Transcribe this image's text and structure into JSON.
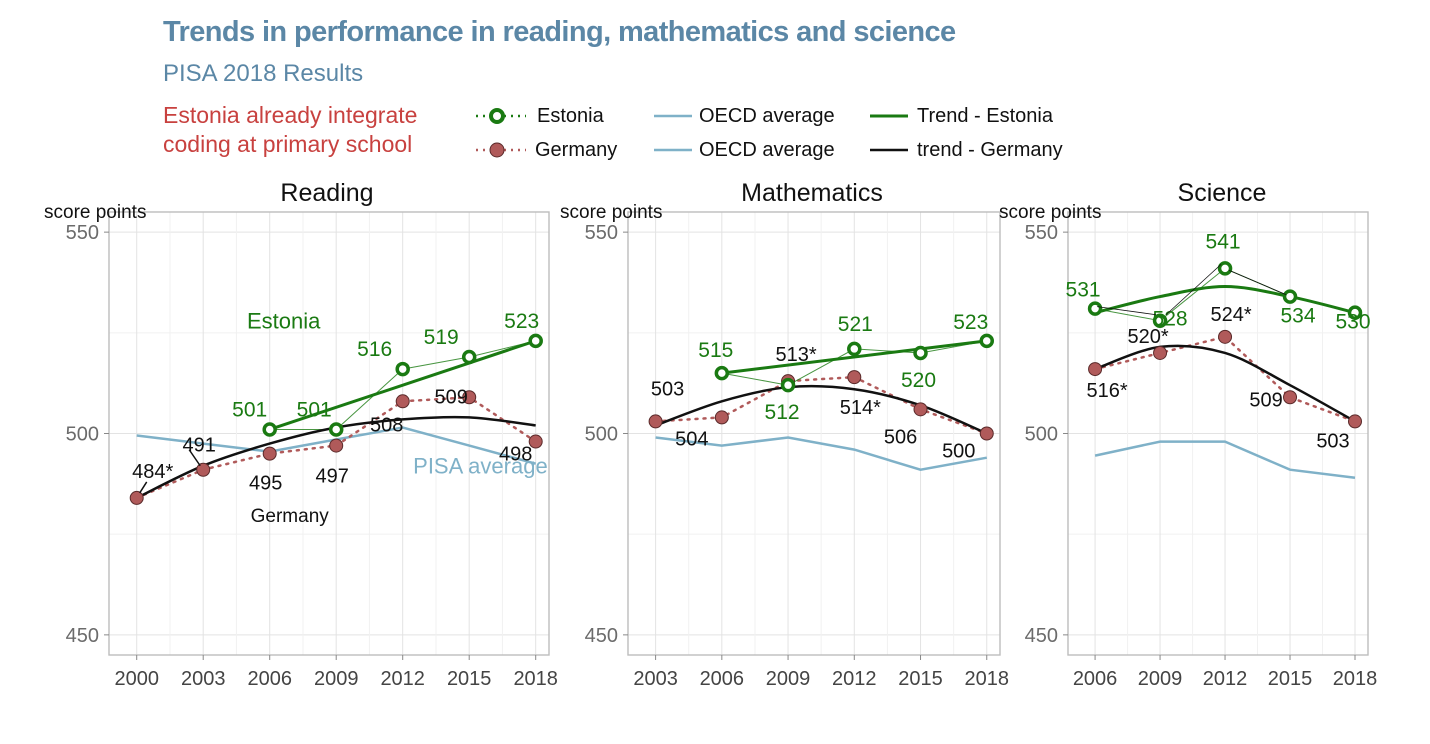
{
  "title": "Trends in performance in reading, mathematics and science",
  "subtitle": "PISA 2018 Results",
  "note": [
    "Estonia already integrate",
    "coding at primary school"
  ],
  "legend": {
    "estonia": "Estonia",
    "germany": "Germany",
    "oecd_1": "OECD average",
    "oecd_2": "OECD average",
    "trend_estonia": "Trend - Estonia",
    "trend_germany": "trend - Germany"
  },
  "colors": {
    "estonia": "#1a7a12",
    "germany": "#b05a5a",
    "oecd": "#7fb1c8",
    "trend_germany": "#111111",
    "note": "#c8413f",
    "title": "#5b87a6"
  },
  "chart_data": [
    {
      "type": "line",
      "title": "Reading",
      "ylabel": "score points",
      "ylim": [
        445,
        555
      ],
      "yticks": [
        450,
        500,
        550
      ],
      "x": [
        2000,
        2003,
        2006,
        2009,
        2012,
        2015,
        2018
      ],
      "series": [
        {
          "name": "Estonia",
          "x": [
            2006,
            2009,
            2012,
            2015,
            2018
          ],
          "values": [
            501,
            501,
            516,
            519,
            523
          ],
          "labels": [
            "501",
            "501",
            "516",
            "519",
            "523"
          ]
        },
        {
          "name": "Germany",
          "x": [
            2000,
            2003,
            2006,
            2009,
            2012,
            2015,
            2018
          ],
          "values": [
            484,
            491,
            495,
            497,
            508,
            509,
            498
          ],
          "labels": [
            "484*",
            "491",
            "495",
            "497",
            "508",
            "509",
            "498"
          ]
        },
        {
          "name": "OECD average",
          "x": [
            2000,
            2003,
            2006,
            2009,
            2012,
            2015,
            2018
          ],
          "values": [
            499.5,
            497.5,
            495.5,
            498.5,
            501.5,
            497,
            492.5
          ]
        },
        {
          "name": "Trend - Estonia",
          "x": [
            2006,
            2018
          ],
          "values": [
            501,
            523
          ]
        },
        {
          "name": "trend - Germany",
          "x": [
            2000,
            2003,
            2006,
            2009,
            2012,
            2015,
            2018
          ],
          "values": [
            484,
            492,
            497.5,
            501.5,
            503.5,
            504,
            502
          ]
        }
      ],
      "annotations": [
        {
          "text": "Estonia",
          "series": "Estonia"
        },
        {
          "text": "PISA average",
          "series": "OECD average"
        },
        {
          "text": "Germany",
          "series": "Germany"
        }
      ]
    },
    {
      "type": "line",
      "title": "Mathematics",
      "ylabel": "score points",
      "ylim": [
        445,
        555
      ],
      "yticks": [
        450,
        500,
        550
      ],
      "x": [
        2003,
        2006,
        2009,
        2012,
        2015,
        2018
      ],
      "series": [
        {
          "name": "Estonia",
          "x": [
            2006,
            2009,
            2012,
            2015,
            2018
          ],
          "values": [
            515,
            512,
            521,
            520,
            523
          ],
          "labels": [
            "515",
            "512",
            "521",
            "520",
            "523"
          ]
        },
        {
          "name": "Germany",
          "x": [
            2003,
            2006,
            2009,
            2012,
            2015,
            2018
          ],
          "values": [
            503,
            504,
            513,
            514,
            506,
            500
          ],
          "labels": [
            "503",
            "504",
            "513*",
            "514*",
            "506",
            "500"
          ]
        },
        {
          "name": "OECD average",
          "x": [
            2003,
            2006,
            2009,
            2012,
            2015,
            2018
          ],
          "values": [
            499,
            497,
            499,
            496,
            491,
            494
          ]
        },
        {
          "name": "Trend - Estonia",
          "x": [
            2006,
            2018
          ],
          "values": [
            515,
            523
          ]
        },
        {
          "name": "trend - Germany",
          "x": [
            2003,
            2006,
            2009,
            2012,
            2015,
            2018
          ],
          "values": [
            502,
            508,
            511.5,
            511,
            507,
            500
          ]
        }
      ]
    },
    {
      "type": "line",
      "title": "Science",
      "ylabel": "score points",
      "ylim": [
        445,
        555
      ],
      "yticks": [
        450,
        500,
        550
      ],
      "x": [
        2006,
        2009,
        2012,
        2015,
        2018
      ],
      "series": [
        {
          "name": "Estonia",
          "x": [
            2006,
            2009,
            2012,
            2015,
            2018
          ],
          "values": [
            531,
            528,
            541,
            534,
            530
          ],
          "labels": [
            "531",
            "528",
            "541",
            "534",
            "530"
          ]
        },
        {
          "name": "Germany",
          "x": [
            2006,
            2009,
            2012,
            2015,
            2018
          ],
          "values": [
            516,
            520,
            524,
            509,
            503
          ],
          "labels": [
            "516*",
            "520*",
            "524*",
            "509",
            "503"
          ]
        },
        {
          "name": "OECD average",
          "x": [
            2006,
            2009,
            2012,
            2015,
            2018
          ],
          "values": [
            494.5,
            498,
            498,
            491,
            489
          ]
        },
        {
          "name": "Trend - Estonia",
          "x": [
            2006,
            2009,
            2012,
            2015,
            2018
          ],
          "values": [
            530,
            534,
            536.5,
            534,
            530
          ]
        },
        {
          "name": "trend - Germany",
          "x": [
            2006,
            2009,
            2012,
            2015,
            2018
          ],
          "values": [
            516,
            521.5,
            520,
            512,
            503
          ]
        }
      ]
    }
  ]
}
